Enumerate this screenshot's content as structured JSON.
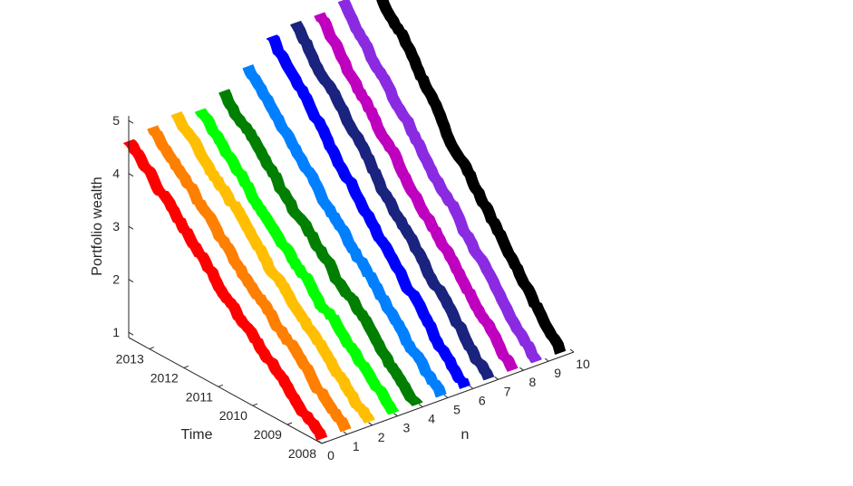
{
  "chart_data": {
    "type": "ribbon3d",
    "title": "",
    "xlabel": "n",
    "ylabel": "Time",
    "zlabel": "Portfolio wealth",
    "x_ticks": [
      "0",
      "1",
      "2",
      "3",
      "4",
      "5",
      "6",
      "7",
      "8",
      "9",
      "10"
    ],
    "y_ticks": [
      "2008",
      "2009",
      "2010",
      "2011",
      "2012",
      "2013"
    ],
    "z_ticks": [
      "1",
      "2",
      "3",
      "4",
      "5"
    ],
    "xlim": [
      0,
      10
    ],
    "ylim": [
      2008,
      2013.6
    ],
    "zlim": [
      0.9,
      5
    ],
    "grid": false,
    "legend": "none",
    "series": [
      {
        "n": 0,
        "color": "#ff0000",
        "start": 1.0,
        "end": 4.6
      },
      {
        "n": 1,
        "color": "#ff7f00",
        "start": 1.0,
        "end": 4.7
      },
      {
        "n": 2,
        "color": "#ffbf00",
        "start": 1.0,
        "end": 4.8
      },
      {
        "n": 3,
        "color": "#00ff00",
        "start": 1.0,
        "end": 4.7
      },
      {
        "n": 4,
        "color": "#007f00",
        "start": 1.0,
        "end": 4.9
      },
      {
        "n": 5,
        "color": "#0080ff",
        "start": 1.0,
        "end": 5.2
      },
      {
        "n": 6,
        "color": "#0000ff",
        "start": 1.0,
        "end": 5.6
      },
      {
        "n": 7,
        "color": "#1a237e",
        "start": 1.0,
        "end": 5.7
      },
      {
        "n": 8,
        "color": "#bf00bf",
        "start": 1.0,
        "end": 5.7
      },
      {
        "n": 9,
        "color": "#8a2be2",
        "start": 1.0,
        "end": 5.8
      },
      {
        "n": 10,
        "color": "#000000",
        "start": 1.0,
        "end": 6.3
      }
    ]
  }
}
